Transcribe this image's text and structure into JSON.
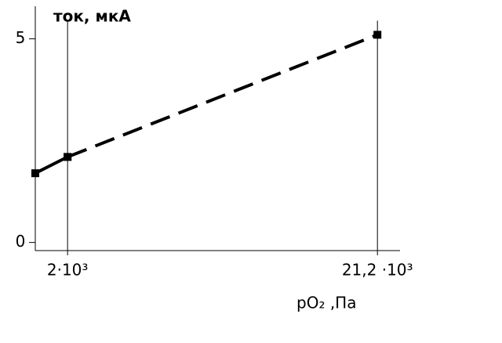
{
  "chart_data": {
    "type": "line",
    "y_label": "ток, мкА",
    "x_label": "pO₂ ,Па",
    "xlim": [
      0,
      22600
    ],
    "ylim": [
      -0.2,
      5.8
    ],
    "xticks": [
      {
        "value": 2000,
        "label": "2·10³"
      },
      {
        "value": 21200,
        "label": "21,2 ·10³"
      }
    ],
    "yticks": [
      0,
      5
    ],
    "series": [
      {
        "color": "#000000",
        "style": "solid",
        "x": [
          0,
          2000
        ],
        "values": [
          1.7,
          2.1
        ]
      },
      {
        "color": "#000000",
        "style": "dashed",
        "x": [
          2000,
          21200
        ],
        "values": [
          2.1,
          5.1
        ]
      }
    ]
  }
}
